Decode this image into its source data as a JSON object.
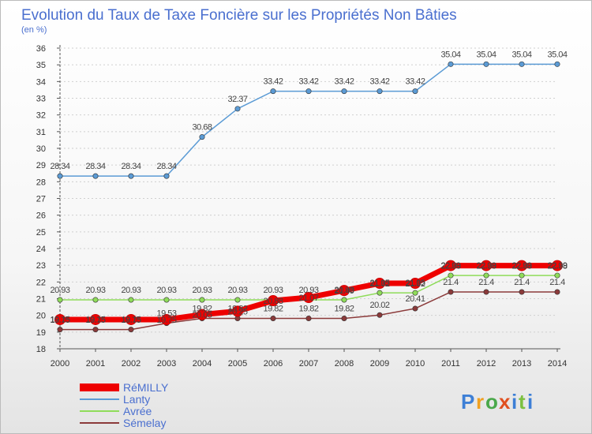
{
  "chart_data": {
    "type": "line",
    "title": "Evolution du Taux de Taxe Foncière sur les Propriétés Non Bâties",
    "subtitle": "(en %)",
    "xlabel": "",
    "ylabel": "",
    "x": [
      "2000",
      "2001",
      "2002",
      "2003",
      "2004",
      "2005",
      "2006",
      "2007",
      "2008",
      "2009",
      "2010",
      "2011",
      "2012",
      "2013",
      "2014"
    ],
    "ylim": [
      18,
      36
    ],
    "yticks": [
      "18",
      "19",
      "20",
      "21",
      "22",
      "23",
      "24",
      "25",
      "26",
      "27",
      "28",
      "29",
      "30",
      "31",
      "32",
      "33",
      "34",
      "35",
      "36"
    ],
    "grid": "horizontal dashed",
    "legend_position": "bottom-left",
    "series": [
      {
        "name": "Lanty",
        "color": "#5b9bd5",
        "values": [
          28.34,
          28.34,
          28.34,
          28.34,
          30.68,
          32.37,
          33.42,
          33.42,
          33.42,
          33.42,
          33.42,
          35.04,
          35.04,
          35.04,
          35.04
        ],
        "labels": [
          "28.34",
          "28.34",
          "28.34",
          "28.34",
          "30.68",
          "32.37",
          "33.42",
          "33.42",
          "33.42",
          "33.42",
          "33.42",
          "35.04",
          "35.04",
          "35.04",
          "35.04"
        ]
      },
      {
        "name": "Avrée",
        "color": "#8fdc5a",
        "values": [
          20.93,
          20.93,
          20.93,
          20.93,
          20.93,
          20.93,
          20.93,
          20.93,
          20.93,
          21.35,
          21.35,
          22.39,
          22.39,
          22.39,
          22.39
        ],
        "labels": [
          "20.93",
          "20.93",
          "20.93",
          "20.93",
          "20.93",
          "20.93",
          "20.93",
          "20.93",
          "20.93",
          "21.35",
          "21.35",
          "22.39",
          "22.39",
          "22.39",
          "22.39"
        ]
      },
      {
        "name": "Sémelay",
        "color": "#8b3a3a",
        "values": [
          19.15,
          19.15,
          19.15,
          19.53,
          19.82,
          19.82,
          19.82,
          19.82,
          19.82,
          20.02,
          20.41,
          21.4,
          21.4,
          21.4,
          21.4
        ],
        "labels": [
          "19.15",
          "19.15",
          "19.15",
          "19.53",
          "19.82",
          "19.82",
          "19.82",
          "19.82",
          "19.82",
          "20.02",
          "20.41",
          "21.4",
          "21.4",
          "21.4",
          "21.4"
        ]
      },
      {
        "name": "RéMILLY",
        "color": "#ee0000",
        "values": [
          19.75,
          19.75,
          19.75,
          19.75,
          20.05,
          20.25,
          20.88,
          21.07,
          21.49,
          21.92,
          21.92,
          22.98,
          22.98,
          22.98,
          22.98
        ],
        "labels": [
          "19.75",
          "19.75",
          "19.75",
          "19.75",
          "20.05",
          "20.25",
          "20.88",
          "21.07",
          "21.49",
          "21.92",
          "21.92",
          "22.98",
          "22.98",
          "22.98",
          "22.98"
        ]
      }
    ],
    "legend": [
      "RéMILLY",
      "Lanty",
      "Avrée",
      "Sémelay"
    ]
  },
  "branding": {
    "logo_text": "Proxiti",
    "logo_letters": [
      "P",
      "r",
      "o",
      "x",
      "i",
      "t",
      "i"
    ],
    "logo_colors": [
      "#3d7fd6",
      "#f0a020",
      "#4aa84a",
      "#e05020",
      "#3d7fd6",
      "#7cc040",
      "#3d7fd6"
    ]
  }
}
